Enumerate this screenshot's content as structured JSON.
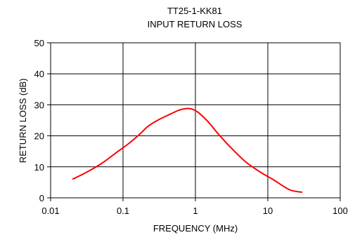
{
  "chart_data": {
    "type": "line",
    "title": "TT25-1-KK81",
    "subtitle": "INPUT RETURN LOSS",
    "xlabel": "FREQUENCY (MHz)",
    "ylabel": "RETURN LOSS (dB)",
    "x_scale": "log",
    "xlim": [
      0.01,
      100
    ],
    "ylim": [
      0,
      50
    ],
    "x_ticks": [
      0.01,
      0.1,
      1,
      10,
      100
    ],
    "x_tick_labels": [
      "0.01",
      "0.1",
      "1",
      "10",
      "100"
    ],
    "y_ticks": [
      0,
      10,
      20,
      30,
      40,
      50
    ],
    "y_tick_labels": [
      "0",
      "10",
      "20",
      "30",
      "40",
      "50"
    ],
    "grid": true,
    "line_color": "#ff0000",
    "series": [
      {
        "x": [
          0.02,
          0.03,
          0.05,
          0.08,
          0.12,
          0.17,
          0.22,
          0.3,
          0.45,
          0.6,
          0.75,
          0.9,
          1.1,
          1.5,
          2.0,
          3.0,
          5.0,
          8.0,
          12.0,
          20.0,
          30.0
        ],
        "y": [
          6.0,
          8.0,
          11.0,
          14.5,
          17.5,
          20.5,
          23.0,
          25.0,
          27.0,
          28.3,
          28.8,
          28.6,
          27.5,
          24.5,
          21.0,
          16.5,
          11.5,
          8.2,
          5.8,
          2.6,
          1.8
        ]
      }
    ]
  }
}
